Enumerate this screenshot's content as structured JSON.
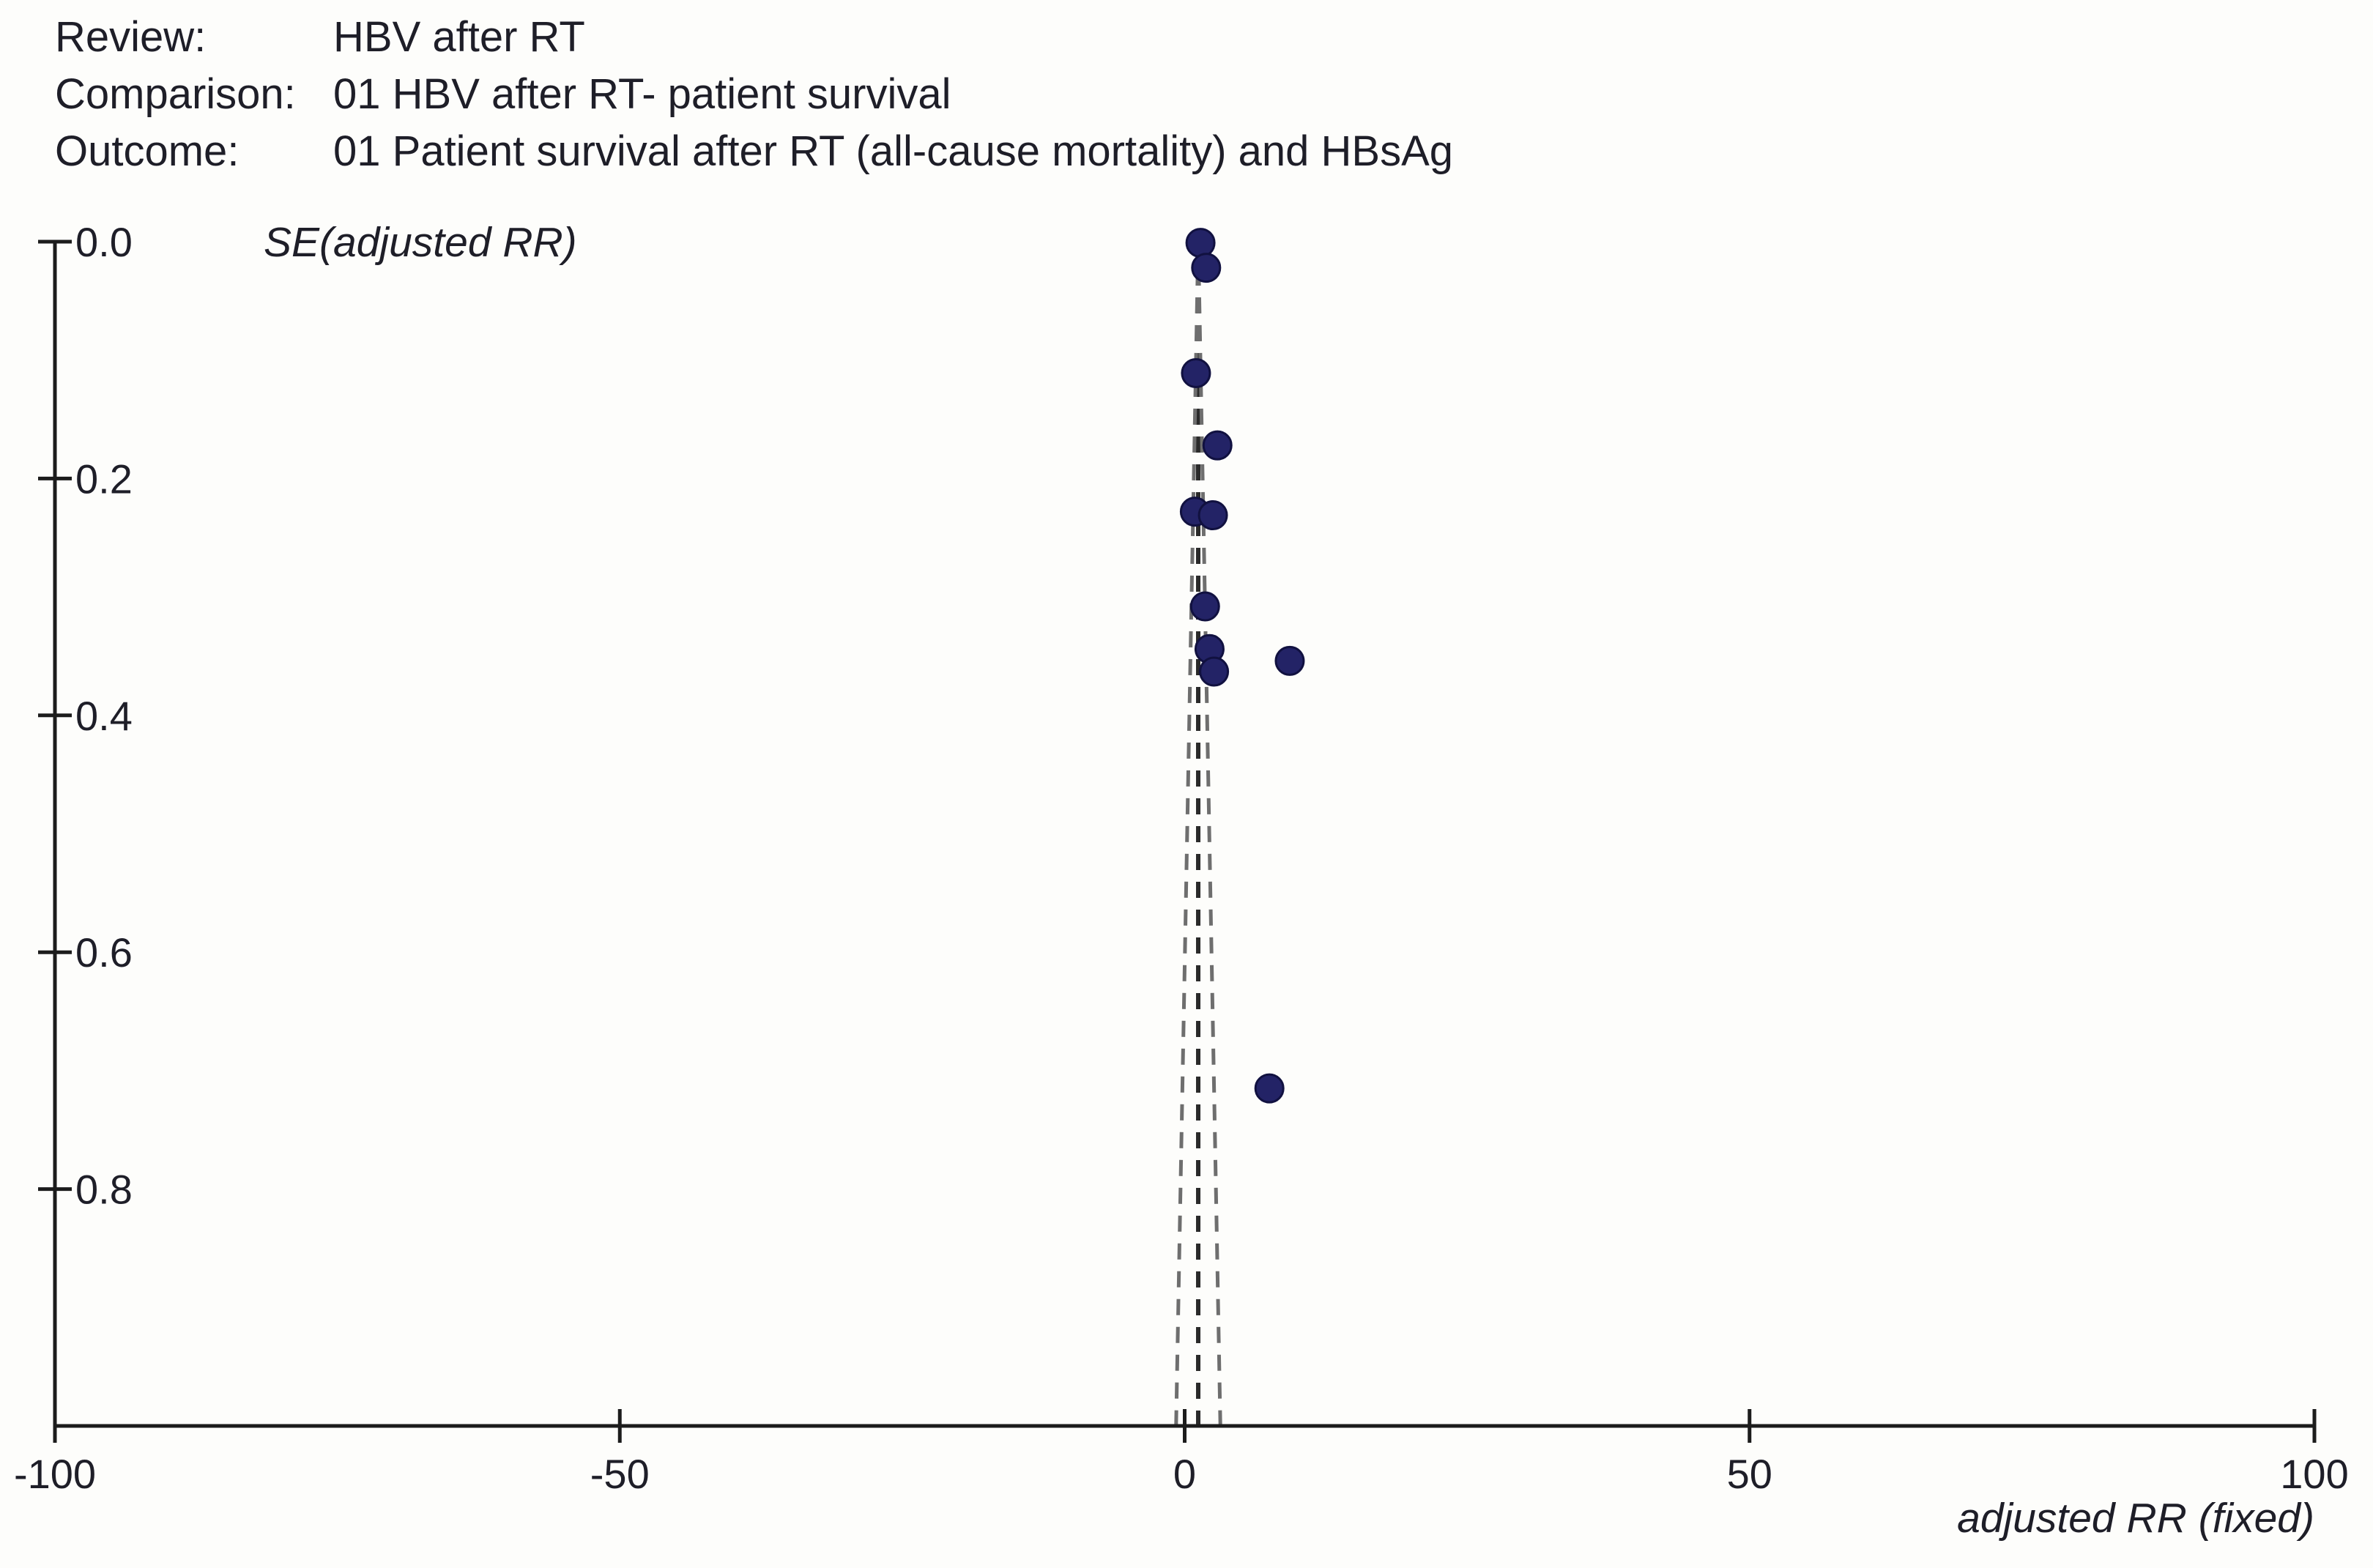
{
  "header": {
    "rows": [
      {
        "label": "Review:",
        "value": "HBV after RT"
      },
      {
        "label": "Comparison:",
        "value": "01 HBV after RT- patient survival"
      },
      {
        "label": "Outcome:",
        "value": "01 Patient survival after RT (all-cause mortality) and HBsAg"
      }
    ]
  },
  "chart_data": {
    "type": "scatter",
    "kind": "funnel-plot",
    "title": "",
    "xlabel": "adjusted RR (fixed)",
    "ylabel": "SE(adjusted RR)",
    "xlim": [
      -100,
      100
    ],
    "ylim": [
      0,
      1.0
    ],
    "x_ticks": [
      -100,
      -50,
      0,
      50,
      100
    ],
    "x_tick_labels": [
      "-100",
      "-50",
      "0",
      "50",
      "100"
    ],
    "y_ticks": [
      0.0,
      0.2,
      0.4,
      0.6,
      0.8
    ],
    "y_tick_labels": [
      "0.0",
      "0.2",
      "0.4",
      "0.6",
      "0.8"
    ],
    "grid": false,
    "legend": "none",
    "pooled_rr": 1.2,
    "funnel_ci_multiplier": 1.96,
    "points": [
      {
        "rr": 1.4,
        "se": 0.001
      },
      {
        "rr": 1.9,
        "se": 0.022
      },
      {
        "rr": 1.0,
        "se": 0.111
      },
      {
        "rr": 2.9,
        "se": 0.172
      },
      {
        "rr": 0.9,
        "se": 0.228
      },
      {
        "rr": 2.5,
        "se": 0.231
      },
      {
        "rr": 1.8,
        "se": 0.308
      },
      {
        "rr": 2.2,
        "se": 0.344
      },
      {
        "rr": 2.6,
        "se": 0.363
      },
      {
        "rr": 9.3,
        "se": 0.354
      },
      {
        "rr": 7.5,
        "se": 0.715
      }
    ],
    "colors": {
      "point_fill": "#232366",
      "point_stroke": "#111140",
      "axis": "#1c1c1c",
      "center_line": "#2a2a2a",
      "funnel_line": "#6e6e6e",
      "text": "#1e1e28",
      "background": "#fdfdfb"
    }
  }
}
